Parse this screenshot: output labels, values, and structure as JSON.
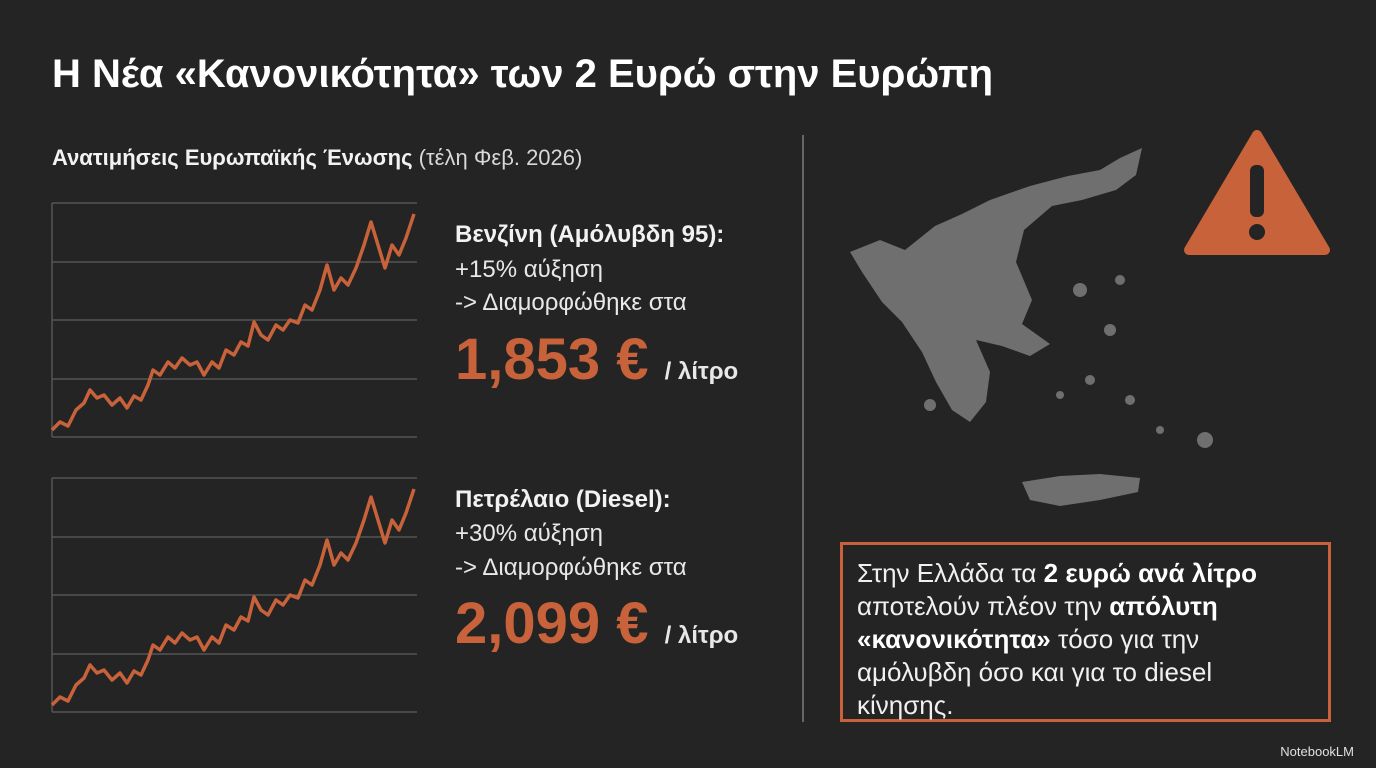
{
  "header": {
    "title": "Η Νέα «Κανονικότητα» των 2 Ευρώ στην Ευρώπη"
  },
  "section": {
    "title": "Ανατιμήσεις Ευρωπαϊκής Ένωσης",
    "note": "(τέλη Φεβ. 2026)"
  },
  "fuels": [
    {
      "name": "Βενζίνη (Αμόλυβδη 95):",
      "change": "+15% αύξηση",
      "result": "-> Διαμορφώθηκε στα",
      "price": "1,853 €",
      "unit": "/ λίτρο"
    },
    {
      "name": "Πετρέλαιο (Diesel):",
      "change": "+30% αύξηση",
      "result": "-> Διαμορφώθηκε στα",
      "price": "2,099 €",
      "unit": "/ λίτρο"
    }
  ],
  "callout": {
    "parts": [
      "Στην Ελλάδα τα",
      "2 ευρώ ανά λίτρο",
      "αποτελούν πλέον την",
      "απόλυτη «κανονικότητα»",
      "τόσο για την αμόλυβδη όσο και για το diesel κίνησης."
    ]
  },
  "footer": {
    "brand": "NotebookLM"
  }
}
